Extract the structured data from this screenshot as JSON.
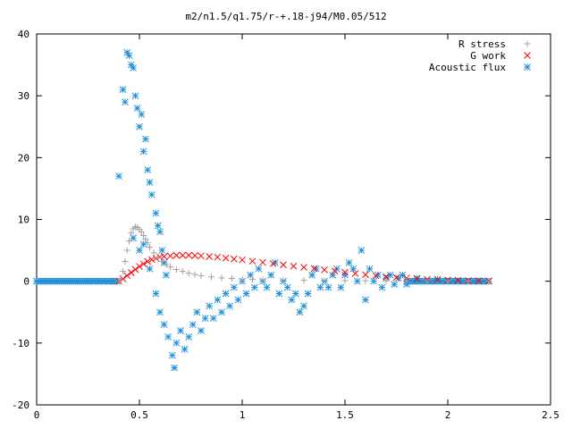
{
  "chart_data": {
    "type": "scatter",
    "title": "m2/n1.5/q1.75/r-+.18-j94/M0.05/512",
    "xlim": [
      0,
      2.5
    ],
    "ylim": [
      -20,
      40
    ],
    "x_ticks": [
      "0",
      "0.5",
      "1",
      "1.5",
      "2",
      "2.5"
    ],
    "y_ticks": [
      "-20",
      "-10",
      "0",
      "10",
      "20",
      "30",
      "40"
    ],
    "x_tick_values": [
      0,
      0.5,
      1,
      1.5,
      2,
      2.5
    ],
    "y_tick_values": [
      -20,
      -10,
      0,
      10,
      20,
      30,
      40
    ],
    "grid": false,
    "legend_position": "top-right",
    "series": [
      {
        "name": "R stress",
        "marker": "plus",
        "color": "#a0a0a0",
        "points": [
          [
            0.4,
            0.0
          ],
          [
            0.41,
            0.5
          ],
          [
            0.42,
            1.6
          ],
          [
            0.43,
            3.2
          ],
          [
            0.44,
            5.0
          ],
          [
            0.45,
            6.5
          ],
          [
            0.46,
            7.8
          ],
          [
            0.47,
            8.5
          ],
          [
            0.48,
            8.8
          ],
          [
            0.49,
            8.7
          ],
          [
            0.5,
            8.4
          ],
          [
            0.51,
            8.0
          ],
          [
            0.52,
            7.4
          ],
          [
            0.53,
            6.8
          ],
          [
            0.54,
            6.2
          ],
          [
            0.55,
            5.5
          ],
          [
            0.57,
            4.6
          ],
          [
            0.59,
            3.8
          ],
          [
            0.61,
            3.2
          ],
          [
            0.63,
            2.7
          ],
          [
            0.65,
            2.3
          ],
          [
            0.68,
            1.9
          ],
          [
            0.71,
            1.6
          ],
          [
            0.74,
            1.3
          ],
          [
            0.77,
            1.1
          ],
          [
            0.8,
            0.9
          ],
          [
            0.85,
            0.7
          ],
          [
            0.9,
            0.55
          ],
          [
            0.95,
            0.45
          ],
          [
            1.0,
            0.35
          ],
          [
            1.05,
            0.3
          ],
          [
            1.1,
            0.25
          ],
          [
            1.2,
            0.2
          ],
          [
            1.3,
            0.15
          ],
          [
            1.4,
            0.12
          ],
          [
            1.5,
            0.1
          ],
          [
            1.6,
            0.08
          ],
          [
            1.7,
            0.06
          ],
          [
            1.8,
            0.05
          ],
          [
            1.9,
            0.04
          ],
          [
            2.0,
            0.03
          ],
          [
            2.1,
            0.02
          ],
          [
            2.2,
            0.02
          ]
        ]
      },
      {
        "name": "G work",
        "marker": "cross",
        "color": "#ff0000",
        "points": [
          [
            0.4,
            0.0
          ],
          [
            0.42,
            0.4
          ],
          [
            0.44,
            0.9
          ],
          [
            0.46,
            1.4
          ],
          [
            0.48,
            1.9
          ],
          [
            0.5,
            2.4
          ],
          [
            0.52,
            2.8
          ],
          [
            0.54,
            3.2
          ],
          [
            0.56,
            3.5
          ],
          [
            0.58,
            3.7
          ],
          [
            0.6,
            3.9
          ],
          [
            0.62,
            4.0
          ],
          [
            0.65,
            4.1
          ],
          [
            0.68,
            4.2
          ],
          [
            0.71,
            4.2
          ],
          [
            0.74,
            4.2
          ],
          [
            0.77,
            4.15
          ],
          [
            0.8,
            4.1
          ],
          [
            0.84,
            4.0
          ],
          [
            0.88,
            3.9
          ],
          [
            0.92,
            3.75
          ],
          [
            0.96,
            3.6
          ],
          [
            1.0,
            3.45
          ],
          [
            1.05,
            3.25
          ],
          [
            1.1,
            3.05
          ],
          [
            1.15,
            2.85
          ],
          [
            1.2,
            2.65
          ],
          [
            1.25,
            2.45
          ],
          [
            1.3,
            2.25
          ],
          [
            1.35,
            2.05
          ],
          [
            1.4,
            1.85
          ],
          [
            1.45,
            1.65
          ],
          [
            1.5,
            1.45
          ],
          [
            1.55,
            1.25
          ],
          [
            1.6,
            1.05
          ],
          [
            1.65,
            0.9
          ],
          [
            1.7,
            0.75
          ],
          [
            1.75,
            0.6
          ],
          [
            1.8,
            0.5
          ],
          [
            1.85,
            0.4
          ],
          [
            1.9,
            0.3
          ],
          [
            1.95,
            0.25
          ],
          [
            2.0,
            0.2
          ],
          [
            2.05,
            0.15
          ],
          [
            2.1,
            0.1
          ],
          [
            2.15,
            0.08
          ],
          [
            2.2,
            0.05
          ]
        ]
      },
      {
        "name": "Acoustic flux",
        "marker": "star",
        "color": "#1e8fd8",
        "points": [
          [
            0.0,
            0
          ],
          [
            0.05,
            0
          ],
          [
            0.1,
            0
          ],
          [
            0.15,
            0
          ],
          [
            0.2,
            0
          ],
          [
            0.25,
            0
          ],
          [
            0.3,
            0
          ],
          [
            0.35,
            0
          ],
          [
            0.39,
            0
          ],
          [
            0.4,
            17
          ],
          [
            0.42,
            31
          ],
          [
            0.43,
            29
          ],
          [
            0.44,
            37
          ],
          [
            0.45,
            36.5
          ],
          [
            0.46,
            35
          ],
          [
            0.47,
            34.5
          ],
          [
            0.48,
            30
          ],
          [
            0.49,
            28
          ],
          [
            0.5,
            25
          ],
          [
            0.51,
            27
          ],
          [
            0.52,
            21
          ],
          [
            0.53,
            23
          ],
          [
            0.54,
            18
          ],
          [
            0.55,
            16
          ],
          [
            0.56,
            14
          ],
          [
            0.58,
            11
          ],
          [
            0.59,
            9
          ],
          [
            0.6,
            8
          ],
          [
            0.61,
            5
          ],
          [
            0.62,
            3
          ],
          [
            0.63,
            1
          ],
          [
            0.47,
            7
          ],
          [
            0.5,
            5
          ],
          [
            0.52,
            6
          ],
          [
            0.55,
            2
          ],
          [
            0.58,
            -2
          ],
          [
            0.6,
            -5
          ],
          [
            0.62,
            -7
          ],
          [
            0.64,
            -9
          ],
          [
            0.66,
            -12
          ],
          [
            0.67,
            -14
          ],
          [
            0.68,
            -10
          ],
          [
            0.7,
            -8
          ],
          [
            0.72,
            -11
          ],
          [
            0.74,
            -9
          ],
          [
            0.76,
            -7
          ],
          [
            0.78,
            -5
          ],
          [
            0.8,
            -8
          ],
          [
            0.82,
            -6
          ],
          [
            0.84,
            -4
          ],
          [
            0.86,
            -6
          ],
          [
            0.88,
            -3
          ],
          [
            0.9,
            -5
          ],
          [
            0.92,
            -2
          ],
          [
            0.94,
            -4
          ],
          [
            0.96,
            -1
          ],
          [
            0.98,
            -3
          ],
          [
            1.0,
            0
          ],
          [
            1.02,
            -2
          ],
          [
            1.04,
            1
          ],
          [
            1.06,
            -1
          ],
          [
            1.08,
            2
          ],
          [
            1.1,
            0
          ],
          [
            1.12,
            -1
          ],
          [
            1.14,
            1
          ],
          [
            1.16,
            3
          ],
          [
            1.18,
            -2
          ],
          [
            1.2,
            0
          ],
          [
            1.22,
            -1
          ],
          [
            1.24,
            -3
          ],
          [
            1.26,
            -2
          ],
          [
            1.28,
            -5
          ],
          [
            1.3,
            -4
          ],
          [
            1.32,
            -2
          ],
          [
            1.34,
            1
          ],
          [
            1.36,
            2
          ],
          [
            1.38,
            -1
          ],
          [
            1.4,
            0
          ],
          [
            1.42,
            -1
          ],
          [
            1.44,
            1
          ],
          [
            1.46,
            2
          ],
          [
            1.48,
            -1
          ],
          [
            1.5,
            1
          ],
          [
            1.52,
            3
          ],
          [
            1.54,
            2
          ],
          [
            1.56,
            0
          ],
          [
            1.58,
            5
          ],
          [
            1.6,
            -3
          ],
          [
            1.62,
            2
          ],
          [
            1.64,
            0
          ],
          [
            1.66,
            1
          ],
          [
            1.68,
            -1
          ],
          [
            1.7,
            0.5
          ],
          [
            1.72,
            1
          ],
          [
            1.74,
            -0.5
          ],
          [
            1.76,
            0.5
          ],
          [
            1.78,
            1
          ],
          [
            1.8,
            -0.5
          ],
          [
            1.85,
            0.5
          ],
          [
            1.9,
            0
          ],
          [
            1.95,
            0.3
          ],
          [
            2.0,
            0
          ],
          [
            2.05,
            0.1
          ],
          [
            2.1,
            0
          ],
          [
            2.15,
            0
          ],
          [
            2.2,
            0
          ]
        ]
      }
    ]
  }
}
